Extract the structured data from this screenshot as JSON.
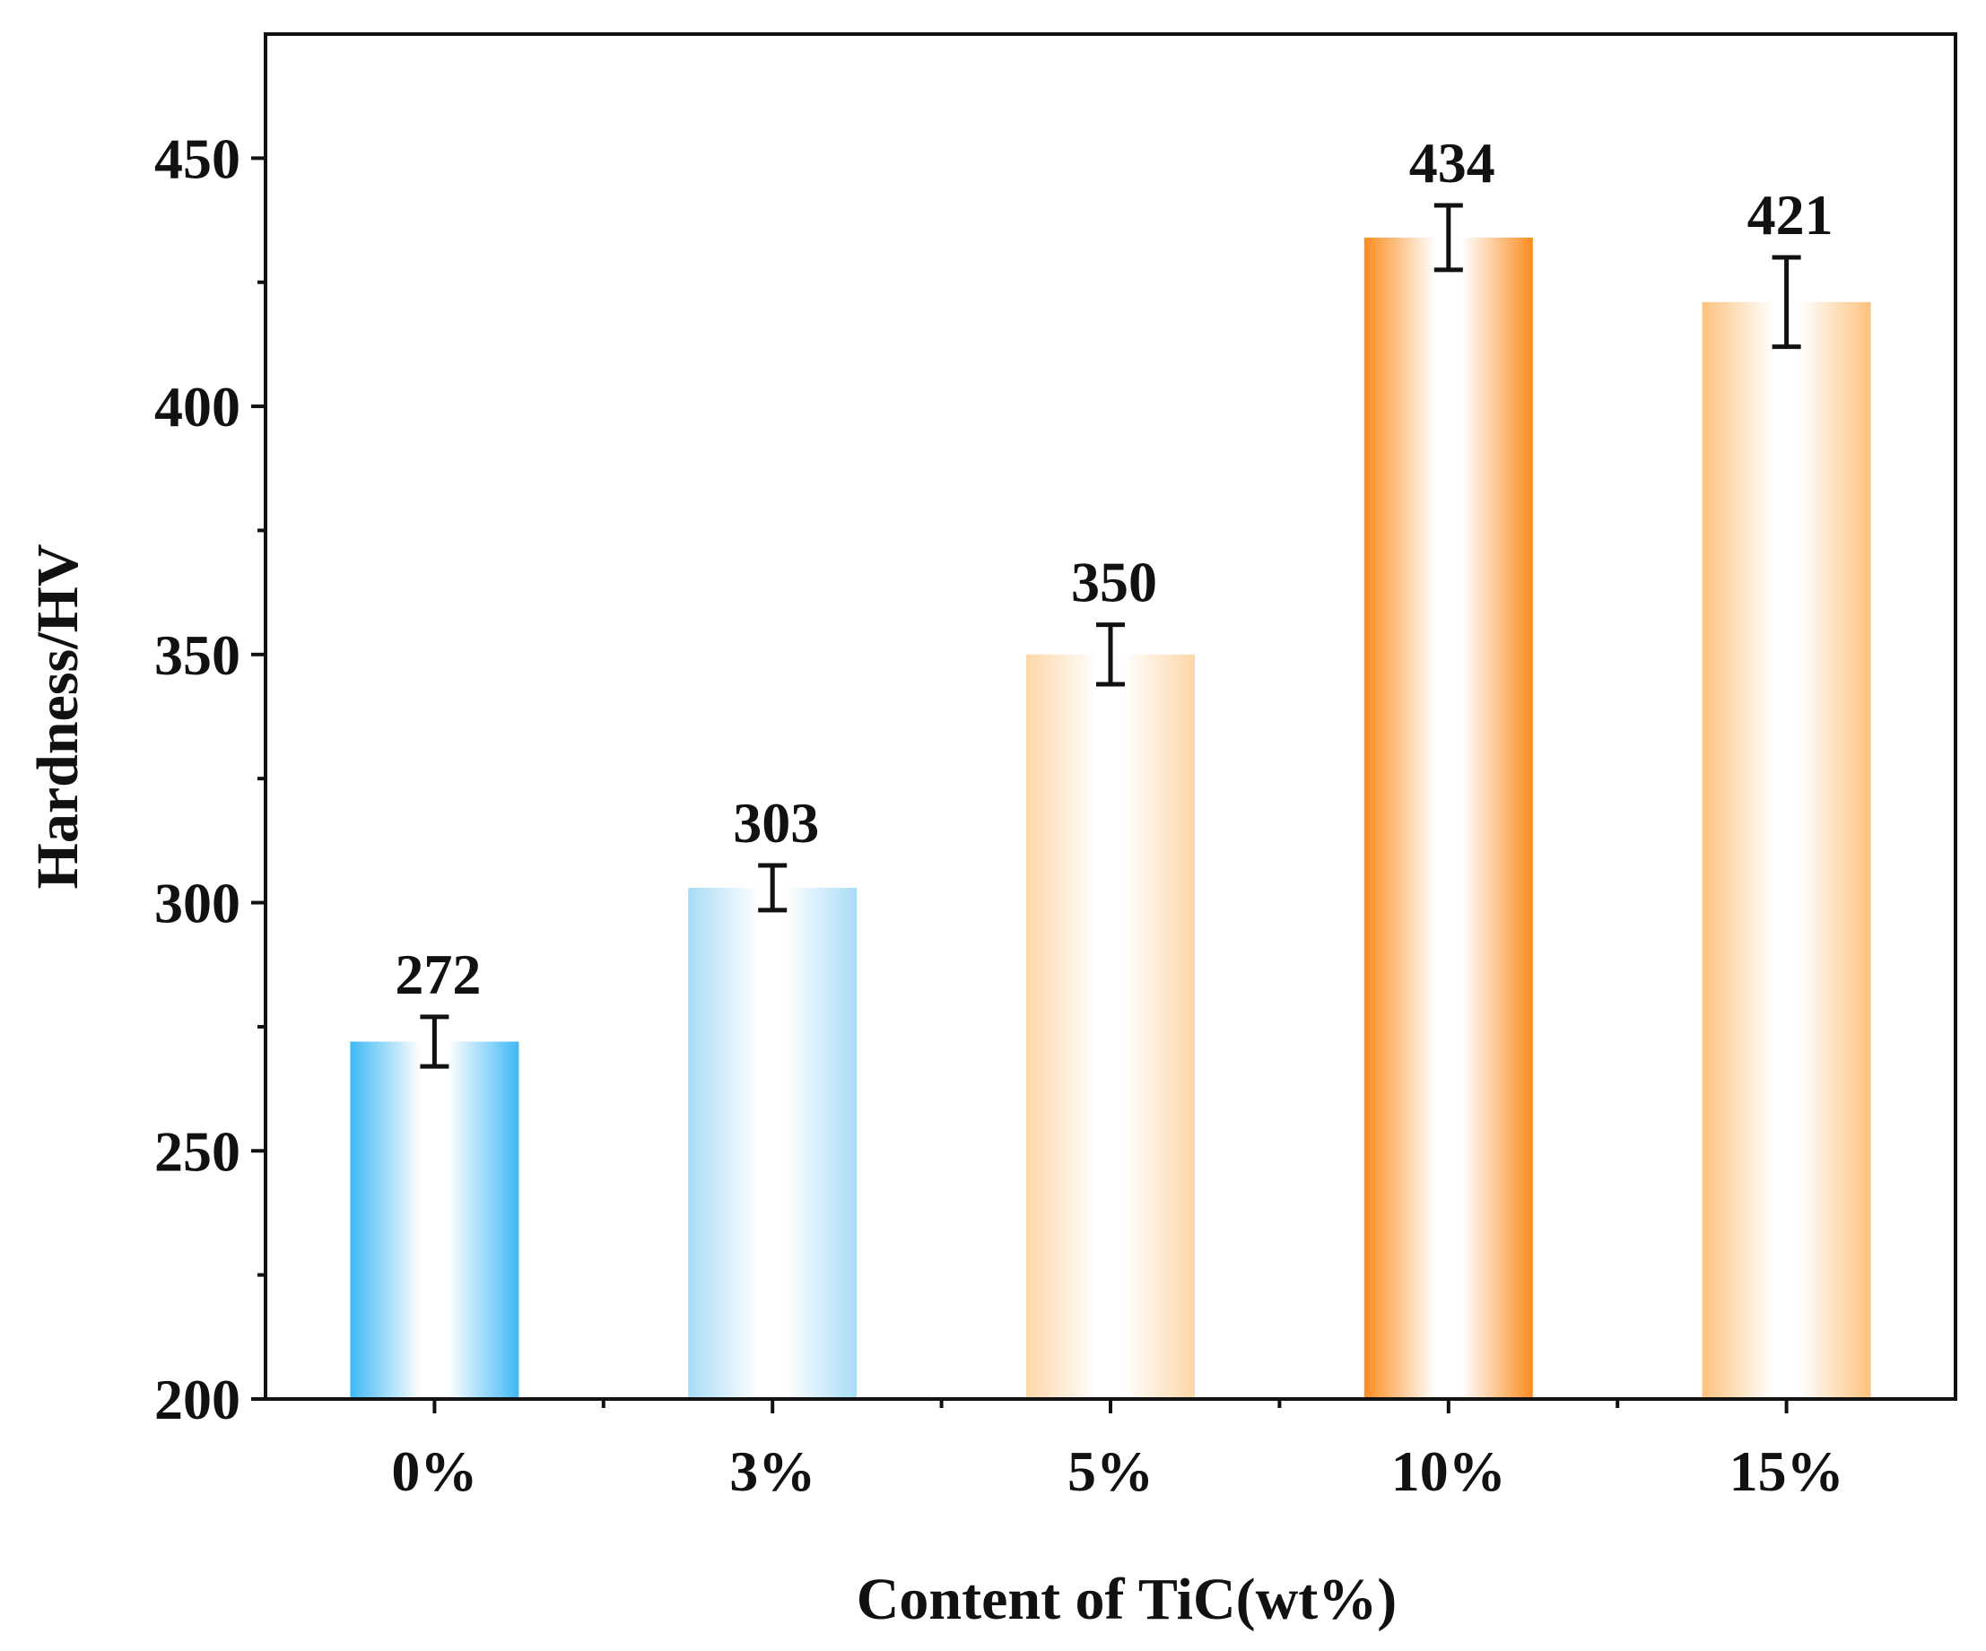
{
  "chart_data": {
    "type": "bar",
    "title": "",
    "xlabel": "Content of TiC(wt%)",
    "ylabel": "Hardness/HV",
    "categories": [
      "0%",
      "3%",
      "5%",
      "10%",
      "15%"
    ],
    "values": [
      272,
      303,
      350,
      434,
      421
    ],
    "value_labels": [
      "272",
      "303",
      "350",
      "434",
      "421"
    ],
    "error": [
      5,
      4.5,
      6,
      6.5,
      9
    ],
    "ylim": [
      200,
      475
    ],
    "yticks": [
      200,
      250,
      300,
      350,
      400,
      450
    ],
    "ytick_labels": [
      "200",
      "250",
      "300",
      "350",
      "400",
      "450"
    ],
    "y_minor_step": 25,
    "grid": false,
    "legend": "none",
    "bar_colors": [
      "#3fb8f5",
      "#a8dcf7",
      "#fed7a8",
      "#fc8c1e",
      "#fdc27d"
    ]
  }
}
